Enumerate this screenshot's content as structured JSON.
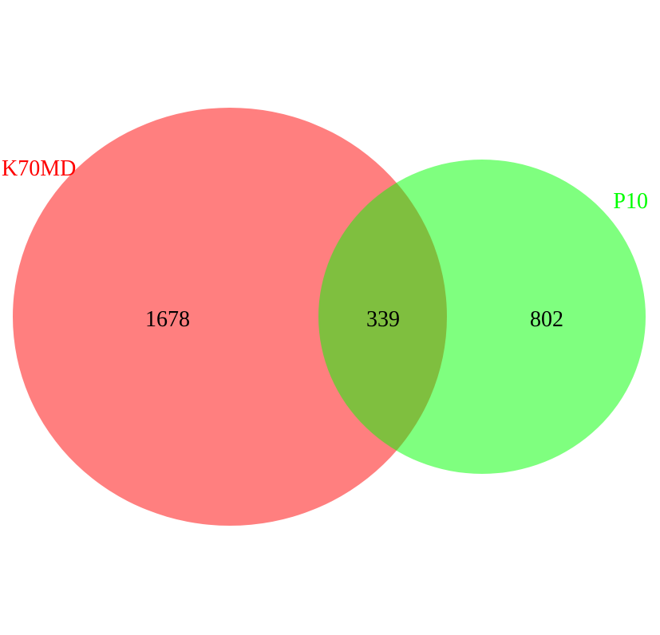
{
  "diagram": {
    "type": "venn",
    "sets": [
      {
        "id": "a",
        "label": "K70MD",
        "color": "#ff0000",
        "only_count": "1678"
      },
      {
        "id": "b",
        "label": "P10",
        "color": "#00ff00",
        "only_count": "802"
      }
    ],
    "intersection_count": "339",
    "fill_opacity": 0.5
  }
}
